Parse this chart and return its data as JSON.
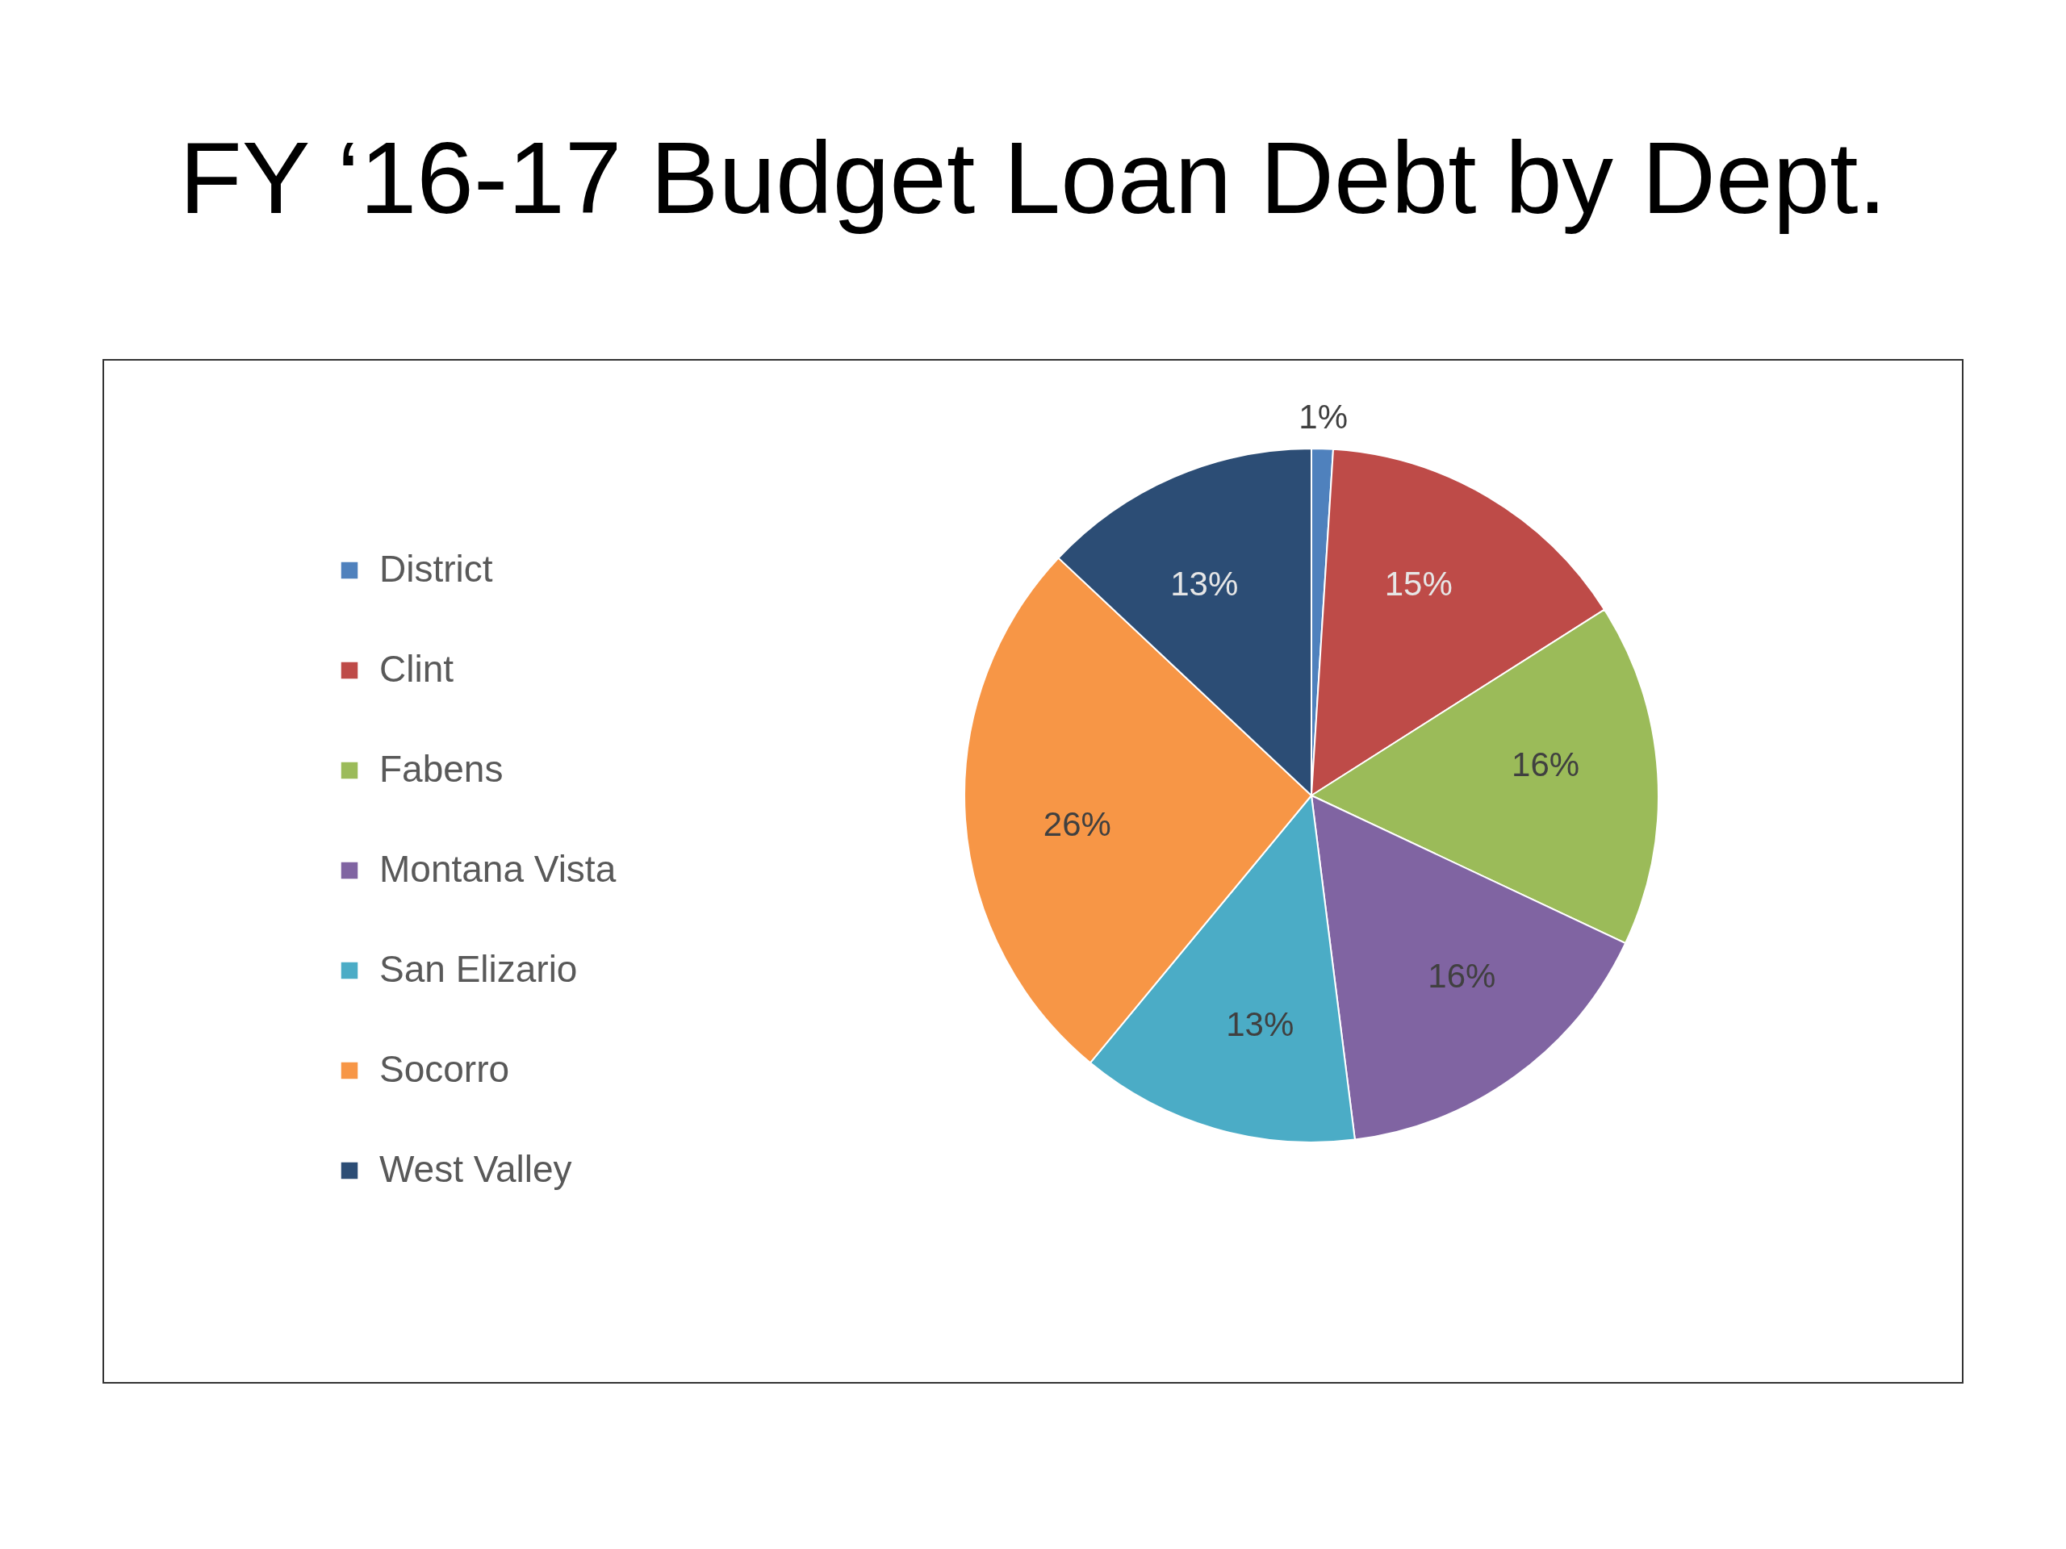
{
  "chart_data": {
    "type": "pie",
    "title": "FY ‘16-17 Budget Loan Debt by Dept.",
    "categories": [
      "District",
      "Clint",
      "Fabens",
      "Montana Vista",
      "San Elizario",
      "Socorro",
      "West Valley"
    ],
    "values": [
      1,
      15,
      16,
      16,
      13,
      26,
      13
    ],
    "colors": [
      "#4f81bd",
      "#be4b48",
      "#9bbb59",
      "#8064a2",
      "#4bacc6",
      "#f79646",
      "#2c4d75"
    ],
    "value_labels": [
      "1%",
      "15%",
      "16%",
      "16%",
      "13%",
      "26%",
      "13%"
    ],
    "legend": "left"
  }
}
